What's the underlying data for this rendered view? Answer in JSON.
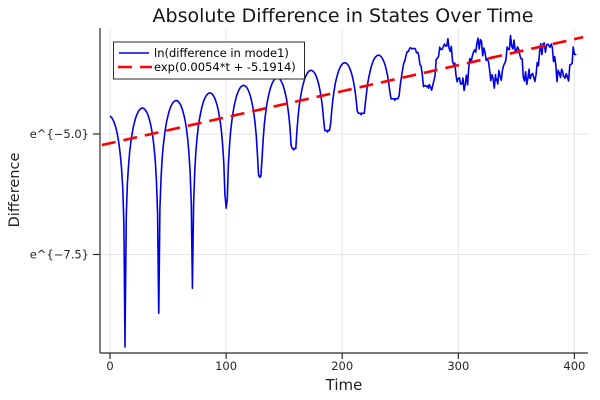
{
  "chart_data": {
    "type": "line",
    "title": "Absolute Difference in States Over Time",
    "xlabel": "Time",
    "ylabel": "Difference",
    "x_ticks": [
      0,
      100,
      200,
      300,
      400
    ],
    "y_ticks": [
      {
        "label": "e^{−5.0}",
        "ln": -5.0
      },
      {
        "label": "e^{−7.5}",
        "ln": -7.5
      }
    ],
    "xlim": [
      -11,
      412
    ],
    "ylim_ln": [
      -9.56,
      -2.77
    ],
    "y_scale": "log (natural), tick labels shown as e^{x}",
    "grid": true,
    "legend_position": "top-left",
    "colors": {
      "series1": "#0000e8",
      "series2": "#ff0000",
      "grid": "#e6e6e6",
      "axis": "#2b2b2b"
    },
    "series": [
      {
        "name": "ln(difference in mode1)",
        "color": "#0000e8",
        "style": "solid",
        "line_width": 1.6,
        "description": "Oscillating |difference| on log axis: arched humps separated by sharp downward needles at zero crossings; envelope grows exponentially then saturates near e^{-3.14}; trace becomes noisy/jagged after t≈250.",
        "model": {
          "trend_slope": 0.0054,
          "trend_intercept": -5.1914,
          "peak_offset": 0.58,
          "peak_saturation_ln": -3.14,
          "half_period": 29.05,
          "first_zero_t": 12.9,
          "t_range": [
            0,
            401.5
          ],
          "dip_times": [
            12.9,
            41.9,
            71.0,
            100.1,
            129.1,
            158.2,
            187.2,
            216.3,
            245.3,
            274.4,
            303.4,
            332.5,
            361.5,
            390.6
          ],
          "dip_floor_ln": [
            -9.42,
            -8.72,
            -8.2,
            -6.54,
            -5.9,
            -5.33,
            -4.96,
            -4.6,
            -4.3,
            -4.05,
            -3.95,
            -3.88,
            -3.84,
            -3.8
          ],
          "noise_start_t": 245,
          "noise_ramp_t": 60,
          "noise_amp_ln": 0.18
        }
      },
      {
        "name": "exp(0.0054*t + -5.1914)",
        "color": "#ff0000",
        "style": "dashed",
        "line_width": 2.6,
        "fit": {
          "slope": 0.0054,
          "intercept": -5.1914
        },
        "t_range": [
          -7,
          407.5
        ],
        "endpoints_ln": {
          "t0": -5.1914,
          "t400": -3.0314
        }
      }
    ]
  }
}
